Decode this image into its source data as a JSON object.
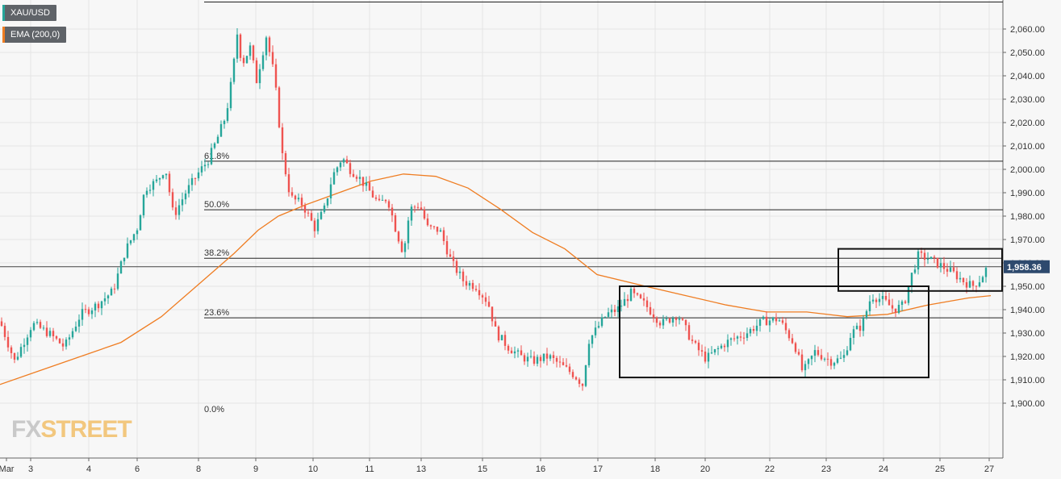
{
  "legend": [
    {
      "label": "XAU/USD",
      "color": "#26a69a"
    },
    {
      "label": "EMA (200,0)",
      "color": "#ef7d22"
    }
  ],
  "watermark": {
    "part1": "FX",
    "part2": "STREET"
  },
  "colors": {
    "up": "#26a69a",
    "down": "#ef5350",
    "ema": "#ef7d22",
    "label_bg": "#2e4a6e"
  },
  "chart_data": {
    "type": "candlestick",
    "title": "",
    "symbol": "XAU/USD",
    "ylim": [
      1895,
      2068
    ],
    "y_ticks": [
      "1,900.00",
      "1,910.00",
      "1,920.00",
      "1,930.00",
      "1,940.00",
      "1,950.00",
      "1,960.00",
      "1,970.00",
      "1,980.00",
      "1,990.00",
      "2,000.00",
      "2,010.00",
      "2,020.00",
      "2,030.00",
      "2,040.00",
      "2,050.00",
      "2,060.00"
    ],
    "x_ticks": [
      "Mar",
      "3",
      "4",
      "6",
      "8",
      "9",
      "10",
      "11",
      "13",
      "15",
      "16",
      "17",
      "18",
      "20",
      "22",
      "23",
      "24",
      "25",
      "27"
    ],
    "grid": true,
    "last_price": {
      "value": 1958.36,
      "label": "1,958.36"
    },
    "fibonacci": [
      {
        "label": "61.8%",
        "value": 2003.5
      },
      {
        "label": "50.0%",
        "value": 1982.7
      },
      {
        "label": "38.2%",
        "value": 1962.0
      },
      {
        "label": "23.6%",
        "value": 1936.5
      },
      {
        "label": "0.0%",
        "value": 1895.2
      }
    ],
    "high_line": 2068.0,
    "price_path": [
      [
        0,
        1935
      ],
      [
        18,
        1918
      ],
      [
        40,
        1934
      ],
      [
        60,
        1930
      ],
      [
        80,
        1924
      ],
      [
        100,
        1938
      ],
      [
        120,
        1942
      ],
      [
        140,
        1948
      ],
      [
        155,
        1965
      ],
      [
        170,
        1975
      ],
      [
        180,
        1992
      ],
      [
        195,
        1995
      ],
      [
        205,
        2001
      ],
      [
        215,
        1980
      ],
      [
        230,
        1990
      ],
      [
        245,
        1998
      ],
      [
        258,
        2004
      ],
      [
        268,
        2012
      ],
      [
        280,
        2023
      ],
      [
        288,
        2040
      ],
      [
        294,
        2058
      ],
      [
        300,
        2045
      ],
      [
        310,
        2052
      ],
      [
        318,
        2038
      ],
      [
        330,
        2057
      ],
      [
        340,
        2040
      ],
      [
        350,
        2006
      ],
      [
        360,
        1988
      ],
      [
        375,
        1985
      ],
      [
        390,
        1975
      ],
      [
        402,
        1983
      ],
      [
        412,
        1997
      ],
      [
        424,
        2005
      ],
      [
        434,
        2000
      ],
      [
        444,
        1997
      ],
      [
        455,
        1992
      ],
      [
        470,
        1985
      ],
      [
        480,
        1988
      ],
      [
        490,
        1975
      ],
      [
        500,
        1964
      ],
      [
        508,
        1983
      ],
      [
        520,
        1985
      ],
      [
        530,
        1975
      ],
      [
        545,
        1974
      ],
      [
        560,
        1960
      ],
      [
        575,
        1952
      ],
      [
        590,
        1950
      ],
      [
        605,
        1943
      ],
      [
        615,
        1930
      ],
      [
        630,
        1924
      ],
      [
        645,
        1920
      ],
      [
        660,
        1918
      ],
      [
        680,
        1920
      ],
      [
        700,
        1915
      ],
      [
        712,
        1912
      ],
      [
        722,
        1908
      ],
      [
        730,
        1927
      ],
      [
        740,
        1932
      ],
      [
        752,
        1938
      ],
      [
        765,
        1940
      ],
      [
        782,
        1947
      ],
      [
        800,
        1942
      ],
      [
        820,
        1934
      ],
      [
        840,
        1938
      ],
      [
        860,
        1925
      ],
      [
        875,
        1919
      ],
      [
        900,
        1926
      ],
      [
        925,
        1930
      ],
      [
        945,
        1935
      ],
      [
        965,
        1936
      ],
      [
        985,
        1925
      ],
      [
        995,
        1913
      ],
      [
        1010,
        1922
      ],
      [
        1030,
        1918
      ],
      [
        1045,
        1919
      ],
      [
        1055,
        1930
      ],
      [
        1068,
        1933
      ],
      [
        1080,
        1946
      ],
      [
        1095,
        1944
      ],
      [
        1108,
        1940
      ],
      [
        1120,
        1942
      ],
      [
        1130,
        1955
      ],
      [
        1138,
        1963
      ],
      [
        1150,
        1962
      ],
      [
        1165,
        1959
      ],
      [
        1180,
        1956
      ],
      [
        1195,
        1952
      ],
      [
        1205,
        1950
      ],
      [
        1215,
        1953
      ],
      [
        1224,
        1958.36
      ]
    ],
    "ema_path": [
      [
        0,
        1908
      ],
      [
        50,
        1914
      ],
      [
        100,
        1920
      ],
      [
        150,
        1926
      ],
      [
        200,
        1937
      ],
      [
        250,
        1952
      ],
      [
        290,
        1964
      ],
      [
        320,
        1974
      ],
      [
        345,
        1980
      ],
      [
        380,
        1985
      ],
      [
        420,
        1990
      ],
      [
        460,
        1995
      ],
      [
        500,
        1998
      ],
      [
        540,
        1997
      ],
      [
        580,
        1992
      ],
      [
        620,
        1983
      ],
      [
        660,
        1973
      ],
      [
        700,
        1966
      ],
      [
        740,
        1955
      ],
      [
        800,
        1950
      ],
      [
        850,
        1946
      ],
      [
        900,
        1942
      ],
      [
        950,
        1939
      ],
      [
        1000,
        1939
      ],
      [
        1050,
        1937
      ],
      [
        1100,
        1938
      ],
      [
        1150,
        1942
      ],
      [
        1200,
        1945
      ],
      [
        1228,
        1946
      ]
    ],
    "highlight_boxes": [
      {
        "x1": 768,
        "x2": 1151,
        "y_top": 1950,
        "y_bottom": 1911
      },
      {
        "x1": 1039,
        "x2": 1242,
        "y_top": 1966,
        "y_bottom": 1948
      }
    ]
  }
}
